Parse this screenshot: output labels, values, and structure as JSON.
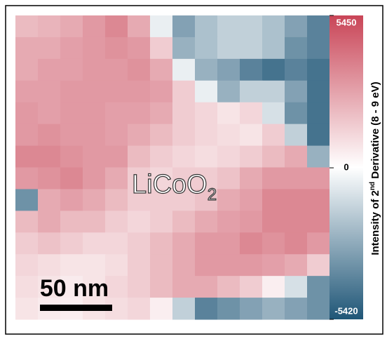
{
  "chart_data": {
    "type": "heatmap",
    "label": "LiCoO",
    "label_subscript": "2",
    "scale_bar": "50 nm",
    "colorbar_label": [
      "Intensity of 2",
      "nd",
      " Derivative (8 - 9 eV)"
    ],
    "colormap": [
      "#1f5677",
      "#ffffff",
      "#c94557"
    ],
    "zlim": [
      -5420,
      5450
    ],
    "zticks": [
      5450,
      0,
      -5420
    ],
    "z": [
      [
        2000,
        2200,
        2500,
        3000,
        3500,
        2500,
        -500,
        -3000,
        -2000,
        -1500,
        -1500,
        -2000,
        -3000,
        -4000
      ],
      [
        2500,
        2500,
        2800,
        3000,
        3200,
        3000,
        1500,
        -2500,
        -2000,
        -1500,
        -1500,
        -2000,
        -3500,
        -4000
      ],
      [
        2500,
        2800,
        2800,
        3000,
        3000,
        3200,
        2500,
        -500,
        -2500,
        -3000,
        -4000,
        -4500,
        -4000,
        -4500
      ],
      [
        2800,
        2800,
        3000,
        3000,
        3000,
        3000,
        2800,
        1500,
        -500,
        -2500,
        -1500,
        -1500,
        -3000,
        -4500
      ],
      [
        3000,
        2800,
        3000,
        3000,
        2800,
        2800,
        2500,
        1500,
        1200,
        800,
        1200,
        -1000,
        -3500,
        -4500
      ],
      [
        3000,
        3200,
        3000,
        3000,
        2800,
        2500,
        2000,
        1500,
        1200,
        1000,
        800,
        1500,
        -1500,
        -4500
      ],
      [
        3500,
        3500,
        3200,
        3000,
        3000,
        2000,
        1500,
        1200,
        1000,
        1200,
        1500,
        2000,
        2500,
        -2500
      ],
      [
        3000,
        3200,
        3500,
        3000,
        2500,
        1500,
        1200,
        1500,
        1500,
        1800,
        2500,
        3000,
        3000,
        3000
      ],
      [
        -3500,
        2500,
        2800,
        2500,
        2000,
        1500,
        1500,
        1500,
        1800,
        2500,
        2800,
        3500,
        3500,
        3500
      ],
      [
        2000,
        2500,
        2000,
        2000,
        1500,
        1200,
        1500,
        2000,
        2500,
        2800,
        3000,
        3500,
        3500,
        3500
      ],
      [
        1500,
        1800,
        1500,
        1200,
        1200,
        1500,
        2000,
        2500,
        3000,
        3000,
        3500,
        3200,
        3500,
        3000
      ],
      [
        1200,
        1000,
        800,
        800,
        1000,
        1500,
        2000,
        2500,
        3000,
        3000,
        3000,
        2800,
        2500,
        1500
      ],
      [
        1000,
        800,
        600,
        800,
        1200,
        1500,
        2000,
        2500,
        2500,
        2000,
        1500,
        500,
        -1000,
        -3500
      ],
      [
        800,
        600,
        500,
        800,
        1000,
        1200,
        500,
        -1500,
        -4000,
        -3500,
        -3000,
        -2500,
        -3000,
        -3500
      ]
    ]
  }
}
